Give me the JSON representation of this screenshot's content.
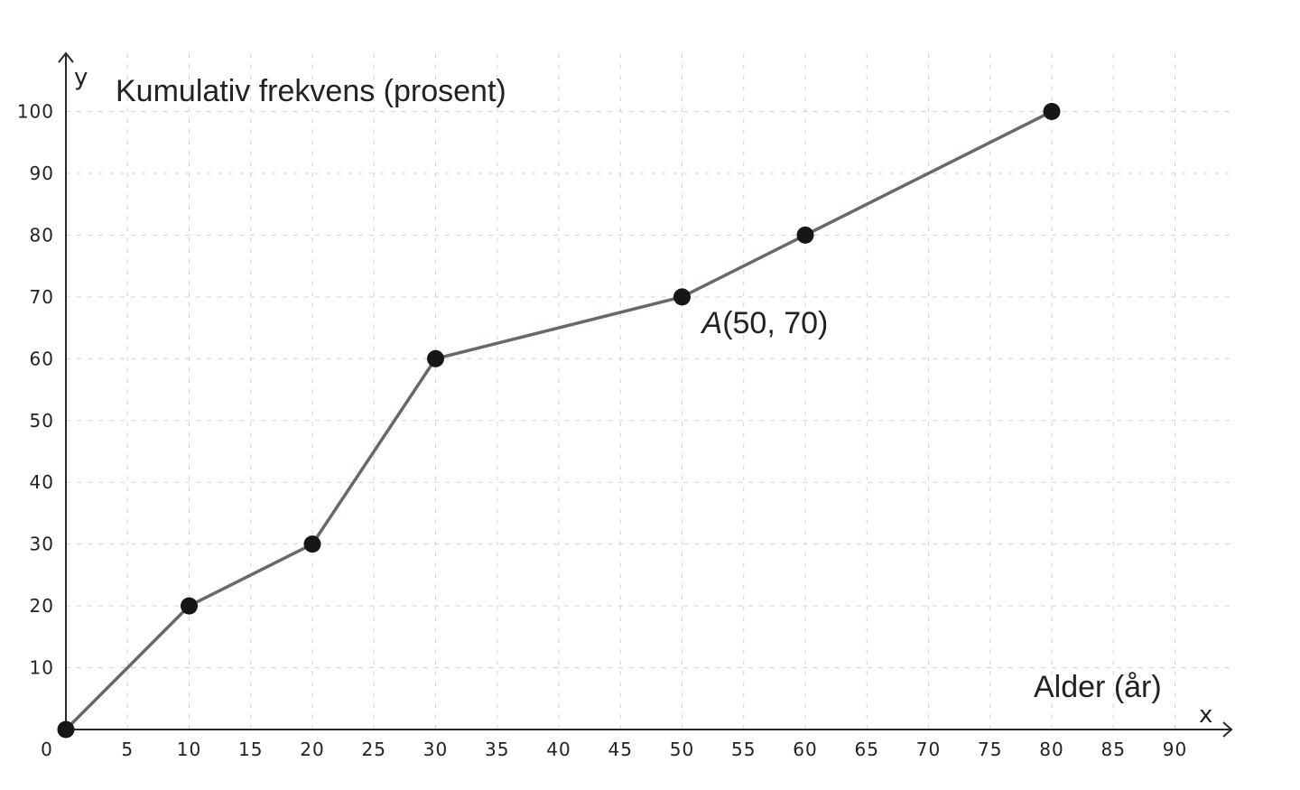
{
  "chart_data": {
    "type": "line",
    "title": "",
    "ylabel": "Kumulativ frekvens (prosent)",
    "xlabel": "Alder (år)",
    "x_axis_letter": "x",
    "y_axis_letter": "y",
    "origin_label": "0",
    "xlim": [
      0,
      95
    ],
    "ylim": [
      0,
      100
    ],
    "x_ticks": [
      5,
      10,
      15,
      20,
      25,
      30,
      35,
      40,
      45,
      50,
      55,
      60,
      65,
      70,
      75,
      80,
      85,
      90
    ],
    "y_ticks": [
      10,
      20,
      30,
      40,
      50,
      60,
      70,
      80,
      90,
      100
    ],
    "grid": true,
    "series": [
      {
        "x": [
          0,
          10,
          20,
          30,
          50,
          60,
          80
        ],
        "y": [
          0,
          20,
          30,
          60,
          70,
          80,
          100
        ],
        "color": "#6e6370",
        "marker_color": "#161616"
      }
    ],
    "annotations": [
      {
        "letter": "A",
        "text": "(50, 70)",
        "x": 50,
        "y": 70
      }
    ]
  }
}
